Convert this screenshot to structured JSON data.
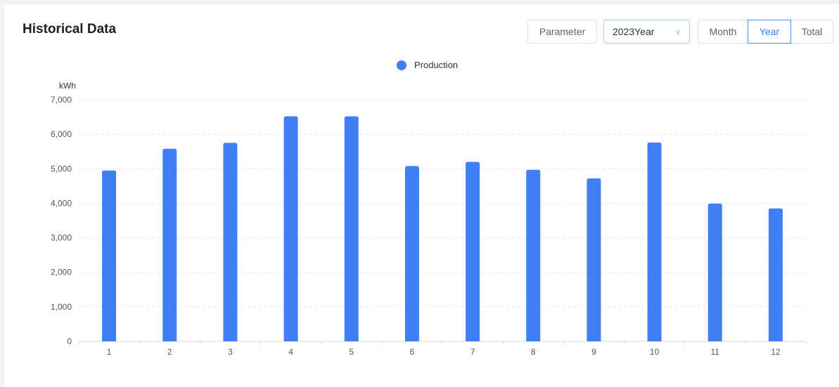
{
  "header": {
    "title": "Historical Data"
  },
  "toolbar": {
    "parameter_label": "Parameter",
    "year_select_value": "2023Year",
    "tabs": [
      {
        "label": "Month",
        "active": false
      },
      {
        "label": "Year",
        "active": true
      },
      {
        "label": "Total",
        "active": false
      }
    ]
  },
  "colors": {
    "bar": "#3f7ef3",
    "active_tab": "#3b7ded"
  },
  "chart_data": {
    "type": "bar",
    "categories": [
      "1",
      "2",
      "3",
      "4",
      "5",
      "6",
      "7",
      "8",
      "9",
      "10",
      "11",
      "12"
    ],
    "series": [
      {
        "name": "Production",
        "values": [
          4950,
          5580,
          5750,
          6520,
          6520,
          5080,
          5200,
          4970,
          4720,
          5760,
          3990,
          3850
        ]
      }
    ],
    "ylabel": "kWh",
    "ylim": [
      0,
      7000
    ],
    "yticks": [
      "0",
      "1,000",
      "2,000",
      "3,000",
      "4,000",
      "5,000",
      "6,000",
      "7,000"
    ],
    "grid": true,
    "legend_position": "top-center"
  }
}
